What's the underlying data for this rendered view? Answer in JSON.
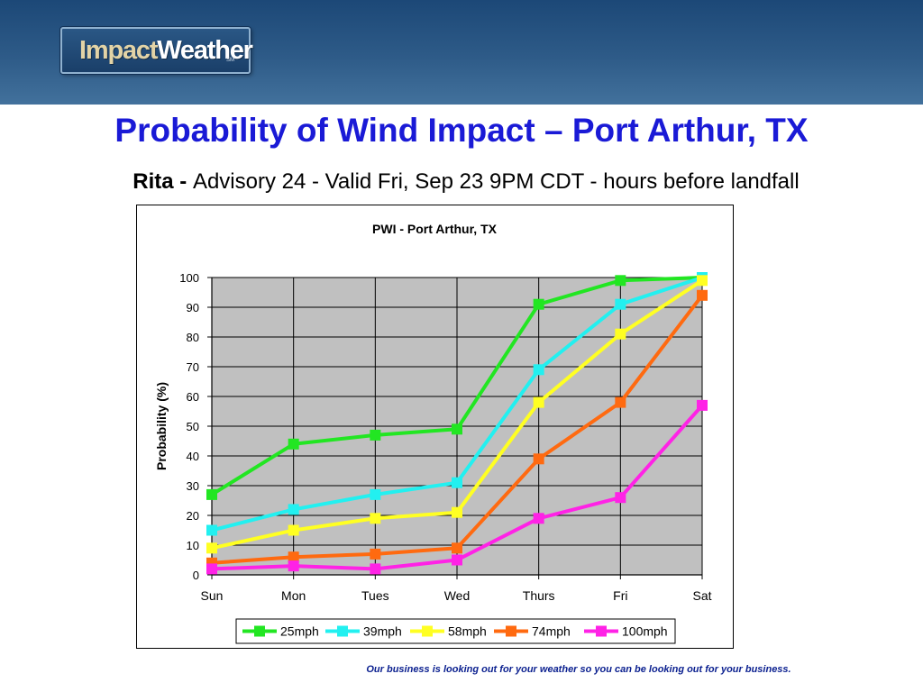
{
  "header": {
    "logo": {
      "part1": "Impact",
      "part2": "Weather",
      "mark": "SM"
    }
  },
  "slide": {
    "title": "Probability of Wind Impact – Port Arthur, TX",
    "subtitle_bold": "Rita - ",
    "subtitle_rest": "Advisory 24 - Valid Fri, Sep 23 9PM CDT - hours before landfall",
    "footer": "Our business is looking out for your weather so you can be looking out for your business."
  },
  "colors": {
    "title": "#1a1ad6",
    "plot_area": "#c0c0c0",
    "footer": "#0a1f8f"
  },
  "chart_data": {
    "type": "line",
    "title": "PWI - Port Arthur, TX",
    "xlabel": "",
    "ylabel": "Probability (%)",
    "categories": [
      "Sun",
      "Mon",
      "Tues",
      "Wed",
      "Thurs",
      "Fri",
      "Sat"
    ],
    "ylim": [
      0,
      100
    ],
    "yticks": [
      0,
      10,
      20,
      30,
      40,
      50,
      60,
      70,
      80,
      90,
      100
    ],
    "grid": true,
    "legend_position": "bottom",
    "series": [
      {
        "name": "25mph",
        "color": "#22e622",
        "values": [
          27,
          44,
          47,
          49,
          91,
          99,
          100
        ]
      },
      {
        "name": "39mph",
        "color": "#22f0f0",
        "values": [
          15,
          22,
          27,
          31,
          69,
          91,
          100
        ]
      },
      {
        "name": "58mph",
        "color": "#ffff22",
        "values": [
          9,
          15,
          19,
          21,
          58,
          81,
          99
        ]
      },
      {
        "name": "74mph",
        "color": "#ff6a10",
        "values": [
          4,
          6,
          7,
          9,
          39,
          58,
          94
        ]
      },
      {
        "name": "100mph",
        "color": "#ff22e6",
        "values": [
          2,
          3,
          2,
          5,
          19,
          26,
          57
        ]
      }
    ]
  }
}
